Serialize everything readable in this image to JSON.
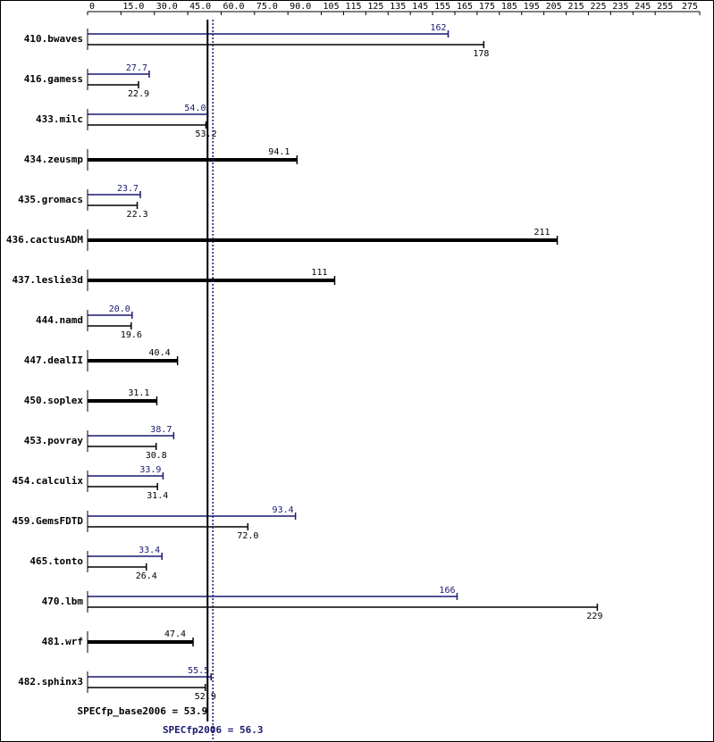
{
  "chart_data": {
    "type": "bar",
    "x_ticks": [
      "0",
      "15.0",
      "30.0",
      "45.0",
      "60.0",
      "75.0",
      "90.0",
      "105",
      "115",
      "125",
      "135",
      "145",
      "155",
      "165",
      "175",
      "185",
      "195",
      "205",
      "215",
      "225",
      "235",
      "245",
      "255",
      "275"
    ],
    "xlim": [
      0,
      275
    ],
    "categories": [
      "410.bwaves",
      "416.gamess",
      "433.milc",
      "434.zeusmp",
      "435.gromacs",
      "436.cactusADM",
      "437.leslie3d",
      "444.namd",
      "447.dealII",
      "450.soplex",
      "453.povray",
      "454.calculix",
      "459.GemsFDTD",
      "465.tonto",
      "470.lbm",
      "481.wrf",
      "482.sphinx3"
    ],
    "series": [
      {
        "name": "SPECfp2006",
        "color": "#191970",
        "values": [
          162,
          27.7,
          54.0,
          null,
          23.7,
          null,
          null,
          20.0,
          null,
          null,
          38.7,
          33.9,
          93.4,
          33.4,
          166,
          null,
          55.5
        ],
        "labels": [
          "162",
          "27.7",
          "54.0",
          null,
          "23.7",
          null,
          null,
          "20.0",
          null,
          null,
          "38.7",
          "33.9",
          "93.4",
          "33.4",
          "166",
          null,
          "55.5"
        ]
      },
      {
        "name": "SPECfp_base2006",
        "color": "#000000",
        "values": [
          178,
          22.9,
          53.2,
          94.1,
          22.3,
          211,
          111,
          19.6,
          40.4,
          31.1,
          30.8,
          31.4,
          72.0,
          26.4,
          229,
          47.4,
          52.9
        ],
        "labels": [
          "178",
          "22.9",
          "53.2",
          "94.1",
          "22.3",
          "211",
          "111",
          "19.6",
          "40.4",
          "31.1",
          "30.8",
          "31.4",
          "72.0",
          "26.4",
          "229",
          "47.4",
          "52.9"
        ]
      }
    ],
    "summary": {
      "base_label": "SPECfp_base2006 = 53.9",
      "base_value": 53.9,
      "peak_label": "SPECfp2006 = 56.3",
      "peak_value": 56.3
    }
  }
}
